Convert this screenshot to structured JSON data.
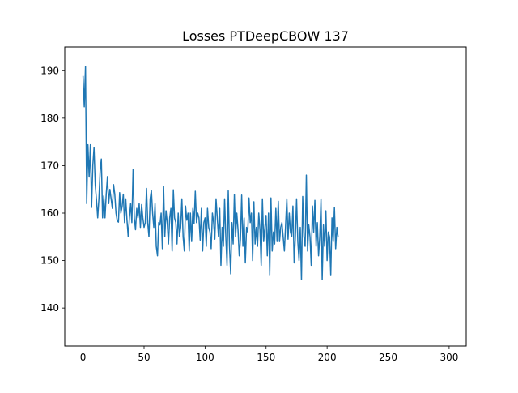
{
  "chart_data": {
    "type": "line",
    "title": "Losses PTDeepCBOW 137",
    "xlabel": "",
    "ylabel": "",
    "xlim": [
      -15,
      314
    ],
    "ylim": [
      132,
      195
    ],
    "xticks": [
      0,
      50,
      100,
      150,
      200,
      250,
      300
    ],
    "yticks": [
      140,
      150,
      160,
      170,
      180,
      190
    ],
    "grid": false,
    "legend": "none",
    "series": [
      {
        "color": "#1f77b4",
        "x_start": 0,
        "x_step": 1,
        "values": [
          188.9,
          182.4,
          190.9,
          162.0,
          174.4,
          167.6,
          174.4,
          161.2,
          170.0,
          173.8,
          165.9,
          162.8,
          159.0,
          163.0,
          168.9,
          171.4,
          159.0,
          163.6,
          159.0,
          164.0,
          167.7,
          162.0,
          165.0,
          163.0,
          161.0,
          166.0,
          164.0,
          160.0,
          158.4,
          158.1,
          164.3,
          160.0,
          161.4,
          164.0,
          158.0,
          163.0,
          158.5,
          155.0,
          159.0,
          162.0,
          158.0,
          169.2,
          159.0,
          156.5,
          161.0,
          159.0,
          162.0,
          157.0,
          161.8,
          159.0,
          157.0,
          158.0,
          165.2,
          158.0,
          155.0,
          163.0,
          164.8,
          160.0,
          157.0,
          162.0,
          153.0,
          151.0,
          158.0,
          157.5,
          160.0,
          152.5,
          165.6,
          155.0,
          160.5,
          158.0,
          153.5,
          159.0,
          161.0,
          152.0,
          164.9,
          159.0,
          158.0,
          153.5,
          160.0,
          155.0,
          157.0,
          163.0,
          155.0,
          152.0,
          161.5,
          158.5,
          160.0,
          152.0,
          160.0,
          154.0,
          161.0,
          157.8,
          164.6,
          158.0,
          160.0,
          159.0,
          154.3,
          161.0,
          152.0,
          158.0,
          159.0,
          153.0,
          161.0,
          157.0,
          156.0,
          152.5,
          160.0,
          158.0,
          154.5,
          163.0,
          159.0,
          155.0,
          161.0,
          149.0,
          157.0,
          153.0,
          163.0,
          155.0,
          149.0,
          164.7,
          153.0,
          147.2,
          158.0,
          153.5,
          163.9,
          155.0,
          160.0,
          156.5,
          151.0,
          154.5,
          163.8,
          153.0,
          159.0,
          149.5,
          157.0,
          156.0,
          163.2,
          158.0,
          160.0,
          150.0,
          162.4,
          153.5,
          157.0,
          153.0,
          160.0,
          156.5,
          149.0,
          163.0,
          154.0,
          157.0,
          159.5,
          151.0,
          160.0,
          147.0,
          163.2,
          152.0,
          156.0,
          153.5,
          161.0,
          154.0,
          162.5,
          154.0,
          157.0,
          158.0,
          155.0,
          152.0,
          157.5,
          163.0,
          154.5,
          160.0,
          156.0,
          155.0,
          161.5,
          149.5,
          155.0,
          163.0,
          154.0,
          150.0,
          157.0,
          146.0,
          163.5,
          155.0,
          153.0,
          168.0,
          152.0,
          157.5,
          155.0,
          149.0,
          161.5,
          156.0,
          162.7,
          153.0,
          158.0,
          151.0,
          155.0,
          163.0,
          146.0,
          157.5,
          153.0,
          160.5,
          150.0,
          156.0,
          155.0,
          147.0,
          159.0,
          154.0,
          161.2,
          152.5,
          157.0,
          155.0
        ]
      }
    ]
  }
}
